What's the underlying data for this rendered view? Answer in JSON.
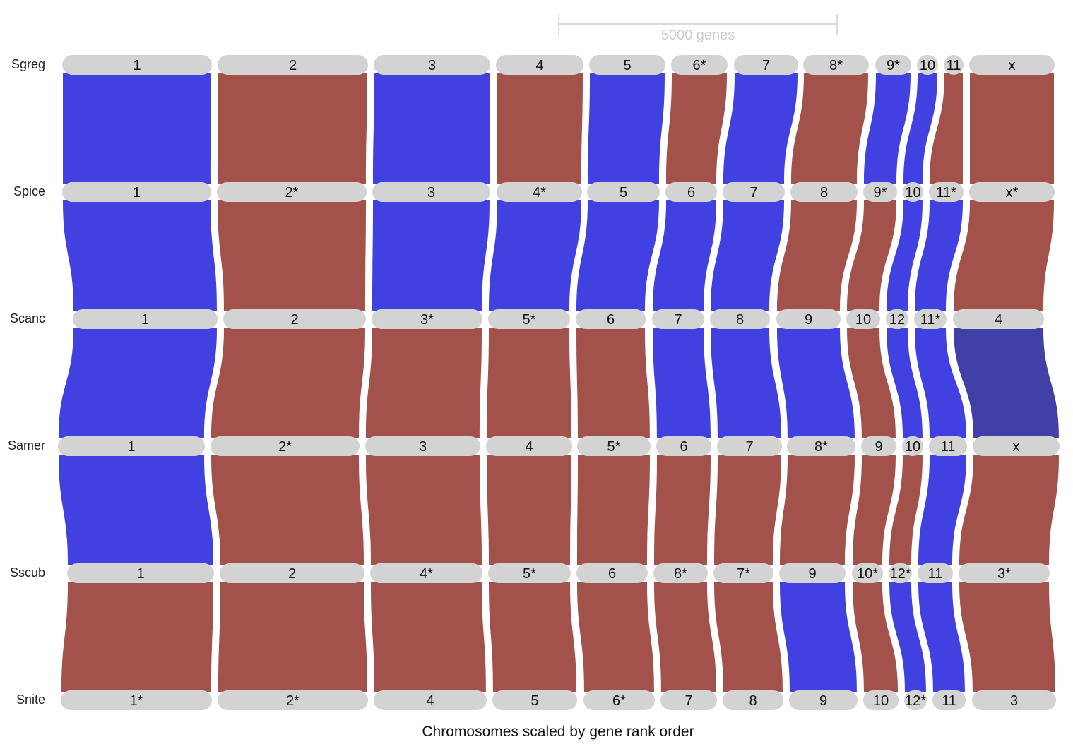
{
  "scale_bar": {
    "label": "5000 genes"
  },
  "title": "Chromosomes scaled by gene rank order",
  "colors": {
    "blue": "#4141e2",
    "red": "#a2524b",
    "navy": "#4040a6",
    "pill": "#d3d3d3"
  },
  "genomes": [
    {
      "name": "Sgreg",
      "chromosomes": [
        "1",
        "2",
        "3",
        "4",
        "5",
        "6*",
        "7",
        "8*",
        "9*",
        "10",
        "11",
        "x"
      ]
    },
    {
      "name": "Spice",
      "chromosomes": [
        "1",
        "2*",
        "3",
        "4*",
        "5",
        "6",
        "7",
        "8",
        "9*",
        "10",
        "11*",
        "x*"
      ]
    },
    {
      "name": "Scanc",
      "chromosomes": [
        "1",
        "2",
        "3*",
        "5*",
        "6",
        "7",
        "8",
        "9",
        "10",
        "12",
        "11*",
        "4"
      ]
    },
    {
      "name": "Samer",
      "chromosomes": [
        "1",
        "2*",
        "3",
        "4",
        "5*",
        "6",
        "7",
        "8*",
        "9",
        "10",
        "11",
        "x"
      ]
    },
    {
      "name": "Sscub",
      "chromosomes": [
        "1",
        "2",
        "4*",
        "5*",
        "6",
        "8*",
        "7*",
        "9",
        "10*",
        "12*",
        "11",
        "3*"
      ]
    },
    {
      "name": "Snite",
      "chromosomes": [
        "1*",
        "2*",
        "4",
        "5",
        "6*",
        "7",
        "8",
        "9",
        "10",
        "12*",
        "11",
        "3"
      ]
    }
  ],
  "ribbon_colors": [
    [
      "blue",
      "red",
      "blue",
      "red",
      "blue",
      "red",
      "blue",
      "red",
      "blue",
      "blue",
      "red",
      "red"
    ],
    [
      "blue",
      "red",
      "blue",
      "blue",
      "blue",
      "blue",
      "blue",
      "red",
      "red",
      "blue",
      "blue",
      "red"
    ],
    [
      "blue",
      "red",
      "red",
      "red",
      "red",
      "blue",
      "blue",
      "blue",
      "red",
      "blue",
      "blue",
      "navy"
    ],
    [
      "blue",
      "red",
      "red",
      "red",
      "red",
      "red",
      "red",
      "red",
      "red",
      "red",
      "blue",
      "red"
    ],
    [
      "red",
      "red",
      "red",
      "red",
      "red",
      "red",
      "red",
      "blue",
      "red",
      "blue",
      "blue",
      "red"
    ]
  ]
}
